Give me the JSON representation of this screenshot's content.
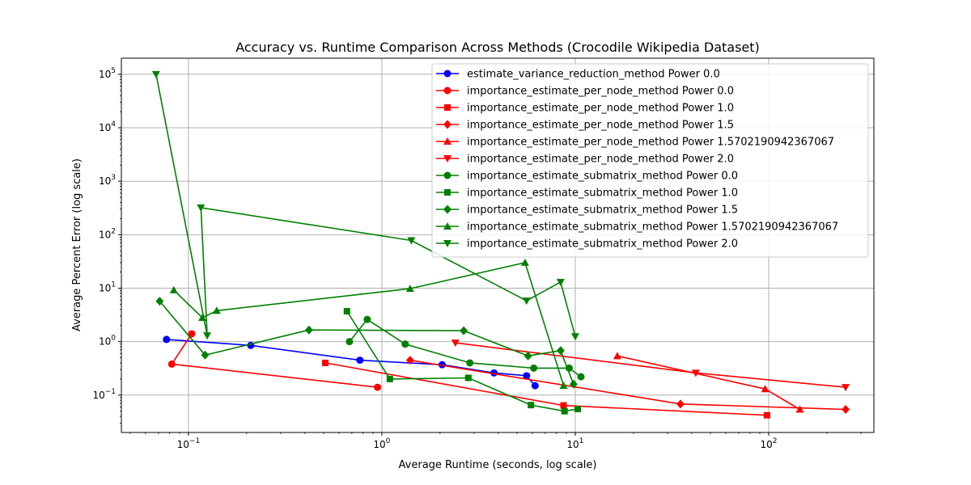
{
  "chart_data": {
    "type": "line",
    "title": "Accuracy vs. Runtime Comparison Across Methods (Crocodile Wikipedia Dataset)",
    "xlabel": "Average Runtime (seconds, log scale)",
    "ylabel": "Average Percent Error (log scale)",
    "xscale": "log",
    "yscale": "log",
    "xlim": [
      0.045,
      350
    ],
    "ylim": [
      0.02,
      200000
    ],
    "grid": true,
    "legend_position": "upper-right",
    "x_ticks": [
      {
        "value": 0.1,
        "base": "10",
        "exp": "−1"
      },
      {
        "value": 1,
        "base": "10",
        "exp": "0"
      },
      {
        "value": 10,
        "base": "10",
        "exp": "1"
      },
      {
        "value": 100,
        "base": "10",
        "exp": "2"
      }
    ],
    "y_ticks": [
      {
        "value": 0.1,
        "base": "10",
        "exp": "−1"
      },
      {
        "value": 1,
        "base": "10",
        "exp": "0"
      },
      {
        "value": 10,
        "base": "10",
        "exp": "1"
      },
      {
        "value": 100,
        "base": "10",
        "exp": "2"
      },
      {
        "value": 1000,
        "base": "10",
        "exp": "3"
      },
      {
        "value": 10000,
        "base": "10",
        "exp": "4"
      },
      {
        "value": 100000,
        "base": "10",
        "exp": "5"
      }
    ],
    "series": [
      {
        "name": "estimate_variance_reduction_method Power 0.0",
        "color": "#0000ff",
        "marker": "circle",
        "x": [
          0.077,
          0.21,
          0.77,
          2.05,
          3.8,
          5.6,
          6.2
        ],
        "y": [
          1.1,
          0.85,
          0.45,
          0.37,
          0.26,
          0.23,
          0.15
        ]
      },
      {
        "name": "importance_estimate_per_node_method Power 0.0",
        "color": "#ff0000",
        "marker": "circle",
        "x": [
          0.104,
          0.082,
          0.95
        ],
        "y": [
          1.4,
          0.38,
          0.14
        ]
      },
      {
        "name": "importance_estimate_per_node_method Power 1.0",
        "color": "#ff0000",
        "marker": "square",
        "x": [
          0.51,
          8.7,
          98
        ],
        "y": [
          0.4,
          0.064,
          0.042
        ]
      },
      {
        "name": "importance_estimate_per_node_method Power 1.5",
        "color": "#ff0000",
        "marker": "diamond",
        "x": [
          1.4,
          35,
          250
        ],
        "y": [
          0.45,
          0.068,
          0.054
        ]
      },
      {
        "name": "importance_estimate_per_node_method Power 1.5702190942367067",
        "color": "#ff0000",
        "marker": "triangle-up",
        "x": [
          16.5,
          96,
          145
        ],
        "y": [
          0.54,
          0.13,
          0.054
        ]
      },
      {
        "name": "importance_estimate_per_node_method Power 2.0",
        "color": "#ff0000",
        "marker": "triangle-down",
        "x": [
          2.4,
          42,
          250
        ],
        "y": [
          0.95,
          0.26,
          0.14
        ]
      },
      {
        "name": "importance_estimate_submatrix_method Power 0.0",
        "color": "#008000",
        "marker": "circle",
        "x": [
          0.68,
          0.84,
          1.32,
          2.85,
          6.1,
          9.3,
          10.7
        ],
        "y": [
          1.0,
          2.6,
          0.9,
          0.4,
          0.32,
          0.32,
          0.22
        ]
      },
      {
        "name": "importance_estimate_submatrix_method Power 1.0",
        "color": "#008000",
        "marker": "square",
        "x": [
          0.66,
          1.1,
          2.8,
          5.9,
          8.8,
          10.3
        ],
        "y": [
          3.7,
          0.2,
          0.21,
          0.065,
          0.05,
          0.055
        ]
      },
      {
        "name": "importance_estimate_submatrix_method Power 1.5",
        "color": "#008000",
        "marker": "diamond",
        "x": [
          0.071,
          0.122,
          0.42,
          2.65,
          5.7,
          8.4,
          9.8
        ],
        "y": [
          5.7,
          0.56,
          1.65,
          1.6,
          0.54,
          0.68,
          0.16
        ]
      },
      {
        "name": "importance_estimate_submatrix_method Power 1.5702190942367067",
        "color": "#008000",
        "marker": "triangle-up",
        "x": [
          0.084,
          0.118,
          0.14,
          1.4,
          5.5,
          8.7
        ],
        "y": [
          9.2,
          2.8,
          3.8,
          9.8,
          30,
          0.15
        ]
      },
      {
        "name": "importance_estimate_submatrix_method Power 2.0",
        "color": "#008000",
        "marker": "triangle-down",
        "x": [
          0.068,
          0.125,
          0.116,
          1.42,
          5.6,
          8.4,
          10
        ],
        "y": [
          100000,
          1.3,
          320,
          78,
          5.8,
          13,
          1.25
        ]
      }
    ]
  }
}
